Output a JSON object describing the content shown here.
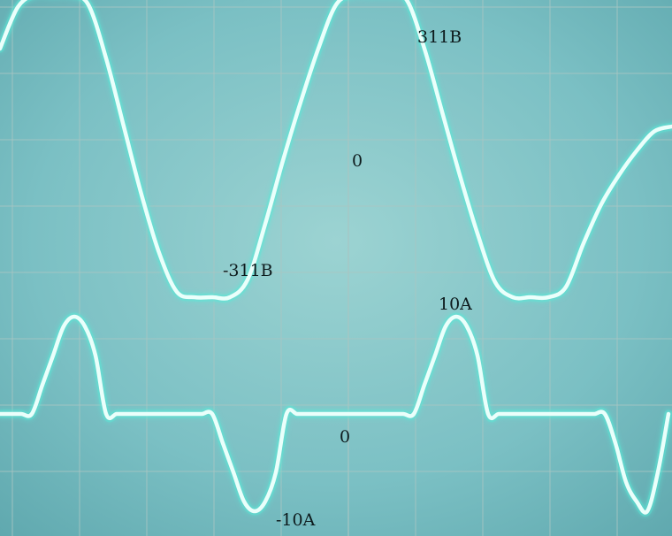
{
  "chart_data": [
    {
      "type": "line",
      "series": [
        {
          "x": [
            0,
            20,
            40,
            60,
            80,
            100,
            120,
            140,
            160,
            180,
            200,
            220,
            240,
            260,
            280,
            300,
            320,
            340,
            360,
            380,
            400,
            420,
            440,
            460,
            480,
            500,
            520,
            540,
            560,
            580,
            600,
            620,
            640,
            660,
            680,
            700,
            720,
            740,
            760
          ],
          "values": [
            200,
            285,
            311,
            311,
            311,
            290,
            180,
            40,
            -100,
            -220,
            -300,
            -311,
            -311,
            -311,
            -275,
            -160,
            -30,
            90,
            200,
            290,
            311,
            311,
            311,
            300,
            200,
            70,
            -60,
            -180,
            -280,
            -311,
            -311,
            -311,
            -290,
            -200,
            -120,
            -60,
            -10,
            30,
            40
          ]
        }
      ],
      "annotations": [
        "311B",
        "0",
        "-311B"
      ],
      "ylim": [
        -400,
        400
      ]
    },
    {
      "type": "line",
      "series": [
        {
          "x": [
            0,
            12,
            24,
            36,
            48,
            60,
            72,
            84,
            96,
            108,
            120,
            132,
            144,
            156,
            168,
            180,
            192,
            204,
            216,
            228,
            240,
            252,
            264,
            276,
            288,
            300,
            312,
            324,
            336,
            348,
            360,
            372,
            384,
            396,
            408,
            420,
            432,
            444,
            456,
            468,
            480,
            492,
            504,
            516,
            528,
            540,
            552,
            564,
            576,
            588,
            600,
            612,
            624,
            636,
            648,
            660,
            672,
            684,
            696,
            708,
            720,
            732,
            744,
            756
          ],
          "values": [
            0,
            0,
            0,
            0,
            3,
            6,
            9,
            10,
            9,
            6,
            0,
            0,
            0,
            0,
            0,
            0,
            0,
            0,
            0,
            0,
            0,
            -3,
            -6,
            -9,
            -10,
            -9,
            -6,
            0,
            0,
            0,
            0,
            0,
            0,
            0,
            0,
            0,
            0,
            0,
            0,
            0,
            3,
            6,
            9,
            10,
            9,
            6,
            0,
            0,
            0,
            0,
            0,
            0,
            0,
            0,
            0,
            0,
            0,
            0,
            -3,
            -7,
            -9,
            -10,
            -6,
            0
          ]
        }
      ],
      "annotations": [
        "10A",
        "0",
        "-10A"
      ],
      "ylim": [
        -12,
        12
      ]
    }
  ],
  "display": {
    "screen_color": "#7fc3c6",
    "trace_color": "#eafffb",
    "glow_color": "#58ead8",
    "grid_color": "#a9c6c3"
  }
}
